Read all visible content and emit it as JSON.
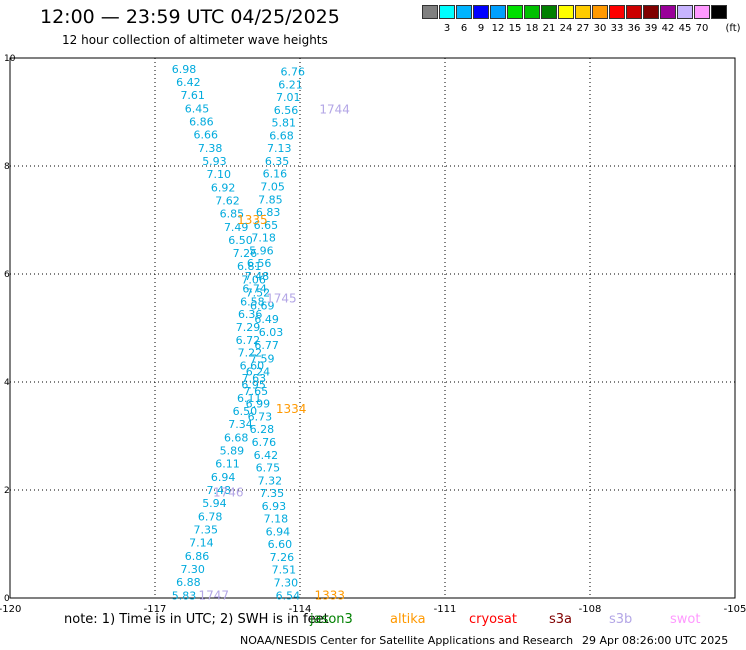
{
  "header": {
    "title": "12:00 — 23:59 UTC 04/25/2025",
    "subtitle": "12 hour collection of altimeter wave heights"
  },
  "legend": {
    "unit": "(ft)",
    "bins": [
      {
        "label": "",
        "color": "#808080"
      },
      {
        "label": "3",
        "color": "#00ffff"
      },
      {
        "label": "6",
        "color": "#00b4ff"
      },
      {
        "label": "9",
        "color": "#0000ff"
      },
      {
        "label": "12",
        "color": "#00a0ff"
      },
      {
        "label": "15",
        "color": "#00e000"
      },
      {
        "label": "18",
        "color": "#00c000"
      },
      {
        "label": "21",
        "color": "#008000"
      },
      {
        "label": "24",
        "color": "#ffff00"
      },
      {
        "label": "27",
        "color": "#ffcc00"
      },
      {
        "label": "30",
        "color": "#ff9900"
      },
      {
        "label": "33",
        "color": "#ff0000"
      },
      {
        "label": "36",
        "color": "#cc0000"
      },
      {
        "label": "39",
        "color": "#800000"
      },
      {
        "label": "42",
        "color": "#990099"
      },
      {
        "label": "45",
        "color": "#c8b4ff"
      },
      {
        "label": "70",
        "color": "#ff99ff"
      },
      {
        "label": "",
        "color": "#000000"
      }
    ]
  },
  "map": {
    "lon_range": [
      -120,
      -105
    ],
    "lat_range": [
      0,
      10
    ],
    "lon_ticks": [
      "-120",
      "-117",
      "-114",
      "-111",
      "-108",
      "-105"
    ],
    "lat_ticks": [
      "0",
      "2",
      "4",
      "6",
      "8",
      "10"
    ],
    "wave_color": "#00aadd",
    "track_a": [
      "6.98",
      "6.42",
      "7.61",
      "6.45",
      "6.86",
      "6.66",
      "7.38",
      "5.93",
      "7.10",
      "6.92",
      "7.62",
      "6.85",
      "7.49",
      "6.50",
      "7.26",
      "6.81",
      "7.06",
      "7.52",
      "6.69",
      "6.49",
      "6.03",
      "6.77",
      "7.59",
      "6.24",
      "6.95",
      "6.11",
      "6.50",
      "7.34",
      "6.68",
      "5.89",
      "6.11",
      "6.94",
      "7.48",
      "5.94",
      "6.78",
      "7.35",
      "7.14",
      "6.86",
      "7.30",
      "6.88",
      "5.83"
    ],
    "track_b": [
      "6.76",
      "6.21",
      "7.01",
      "6.56",
      "5.81",
      "6.68",
      "7.13",
      "6.35",
      "6.16",
      "7.05",
      "7.85",
      "6.83",
      "6.65",
      "7.18",
      "5.96",
      "6.56",
      "7.48",
      "6.74",
      "6.58",
      "6.36",
      "7.29",
      "6.72",
      "7.22",
      "6.60",
      "7.63",
      "7.65",
      "6.99",
      "6.73",
      "6.28",
      "6.76",
      "6.42",
      "6.75",
      "7.32",
      "7.35",
      "6.93",
      "7.18",
      "6.94",
      "6.60",
      "7.26",
      "7.51",
      "7.30",
      "6.54"
    ],
    "passes": [
      {
        "label": "1744",
        "lon": -113.6,
        "lat": 9.05,
        "color": "#b3a6e6"
      },
      {
        "label": "1335",
        "lon": -115.3,
        "lat": 7.0,
        "color": "#ff9900"
      },
      {
        "label": "1745",
        "lon": -114.7,
        "lat": 5.55,
        "color": "#b3a6e6"
      },
      {
        "label": "1334",
        "lon": -114.5,
        "lat": 3.5,
        "color": "#ff9900"
      },
      {
        "label": "1746",
        "lon": -115.8,
        "lat": 1.95,
        "color": "#b3a6e6"
      },
      {
        "label": "1747",
        "lon": -116.1,
        "lat": 0.05,
        "color": "#b3a6e6"
      },
      {
        "label": "1333",
        "lon": -113.7,
        "lat": 0.05,
        "color": "#ff9900"
      }
    ]
  },
  "footer": {
    "note": "note:  1) Time is in UTC;  2) SWH is in feet",
    "satellites": [
      {
        "label": "jason3",
        "color": "#008000"
      },
      {
        "label": "altika",
        "color": "#ff9900"
      },
      {
        "label": "cryosat",
        "color": "#ff0000"
      },
      {
        "label": "s3a",
        "color": "#800000"
      },
      {
        "label": "s3b",
        "color": "#b3a6e6"
      },
      {
        "label": "swot",
        "color": "#ff99ff"
      }
    ],
    "credit": "NOAA/NESDIS Center for Satellite Applications and Research",
    "timestamp": "29 Apr 08:26:00 UTC 2025"
  }
}
